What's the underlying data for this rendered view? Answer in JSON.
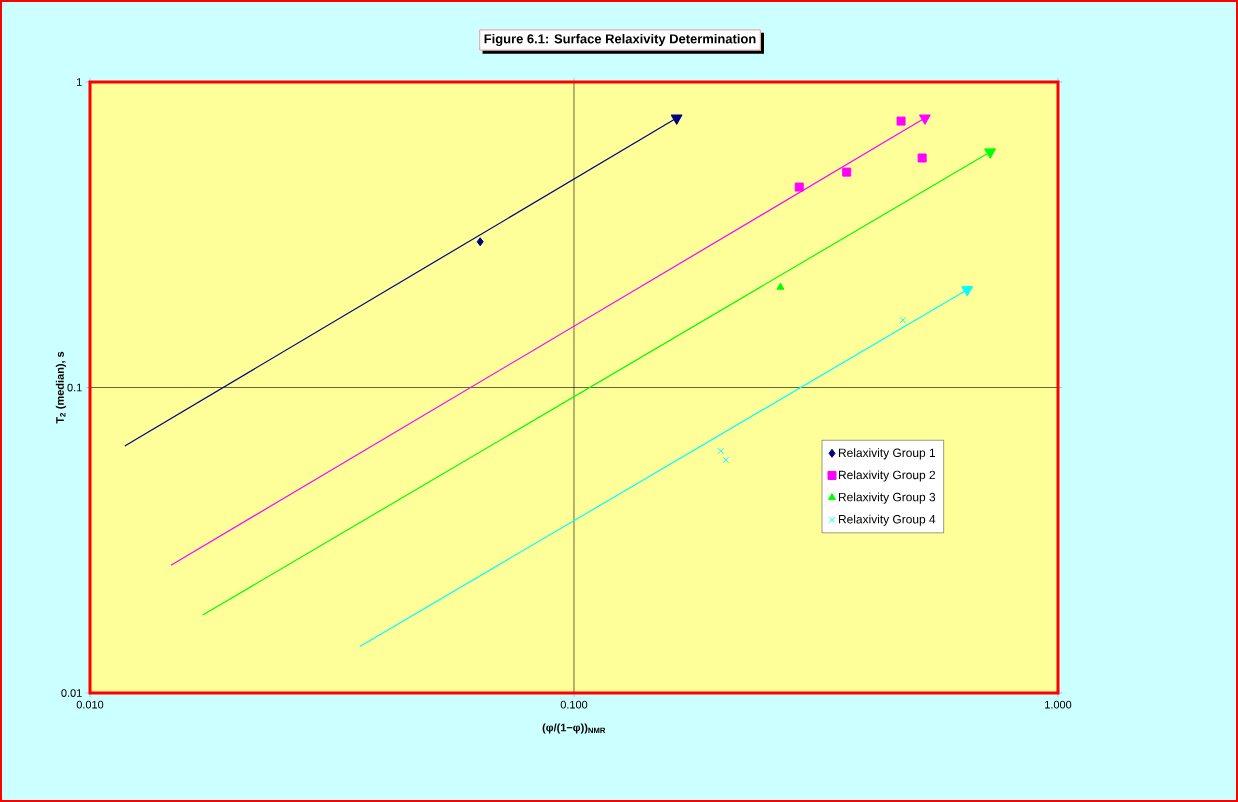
{
  "chart_data": {
    "type": "scatter",
    "title": "Figure 6.1: Surface Relaxivity Determination",
    "xlabel": "(φ/(1−φ))$_{NMR}$",
    "ylabel": "T$_{2}$ (median), s",
    "log": "xy",
    "xlim": [
      0.01,
      1
    ],
    "ylim": [
      0.01,
      1
    ],
    "xticks": [
      {
        "value": 0.01,
        "label": "0.010"
      },
      {
        "value": 0.1,
        "label": "0.100"
      },
      {
        "value": 1,
        "label": "1.000"
      }
    ],
    "yticks": [
      {
        "value": 0.01,
        "label": "0.01"
      },
      {
        "value": 0.1,
        "label": "0.1"
      },
      {
        "value": 1,
        "label": "1"
      }
    ],
    "grid": true,
    "legend": "right",
    "series": [
      {
        "name": "Relaxivity Group 1",
        "color": "#000080",
        "marker": "diamond",
        "x": [
          0.064
        ],
        "values": [
          0.3
        ]
      },
      {
        "name": "Relaxivity Group 2",
        "color": "#ff00ff",
        "marker": "square",
        "x": [
          0.474,
          0.524,
          0.292,
          0.366
        ],
        "values": [
          0.745,
          0.564,
          0.453,
          0.507
        ]
      },
      {
        "name": "Relaxivity Group 3",
        "color": "#00ff00",
        "marker": "triangle",
        "x": [
          0.267
        ],
        "values": [
          0.213
        ]
      },
      {
        "name": "Relaxivity Group 4",
        "color": "#00ffff",
        "marker": "cross",
        "x": [
          0.478,
          0.201,
          0.206
        ],
        "values": [
          0.166,
          0.062,
          0.058
        ]
      },
      {
        "type": "line",
        "color": "#000080",
        "marker": "triangle",
        "x": [
          0.0118,
          0.163
        ],
        "values": [
          0.0644,
          0.762
        ]
      },
      {
        "type": "line",
        "color": "#ff00ff",
        "marker": "triangle",
        "x": [
          0.0147,
          0.531
        ],
        "values": [
          0.0262,
          0.762
        ]
      },
      {
        "type": "line",
        "color": "#00ff00",
        "marker": "triangle",
        "x": [
          0.0171,
          0.724
        ],
        "values": [
          0.018,
          0.59
        ]
      },
      {
        "type": "line",
        "color": "#00ffff",
        "marker": "triangle",
        "x": [
          0.0361,
          0.649
        ],
        "values": [
          0.0142,
          0.209
        ]
      }
    ]
  }
}
